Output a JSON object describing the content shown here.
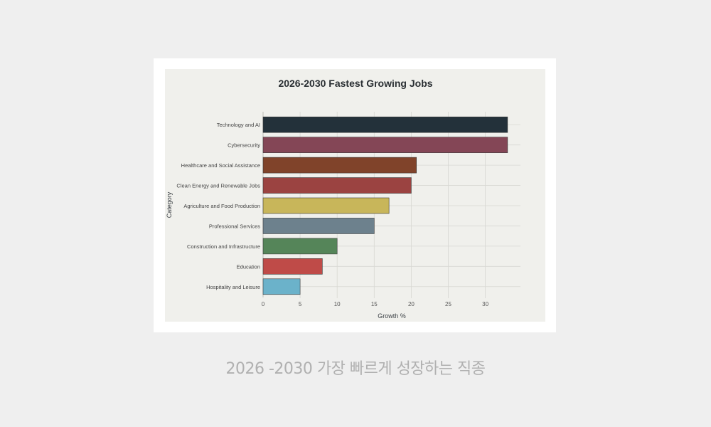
{
  "chart_data": {
    "type": "bar",
    "orientation": "horizontal",
    "title": "2026-2030 Fastest Growing Jobs",
    "xlabel": "Growth %",
    "ylabel": "Category",
    "xlim": [
      0,
      34
    ],
    "xticks": [
      0,
      5,
      10,
      15,
      20,
      25,
      30
    ],
    "grid": true,
    "categories": [
      "Technology and AI",
      "Cybersecurity",
      "Healthcare and Social Assistance",
      "Clean Energy and Renewable Jobs",
      "Agriculture and Food Production",
      "Professional Services",
      "Construction and Infrastructure",
      "Education",
      "Hospitality and Leisure"
    ],
    "values": [
      33,
      33,
      20.7,
      20,
      17,
      15,
      10,
      8,
      5
    ],
    "colors": [
      "#23313a",
      "#844656",
      "#80432a",
      "#9b4341",
      "#c8b65a",
      "#6d818d",
      "#558559",
      "#bf4b48",
      "#6bb2ca"
    ]
  },
  "caption": "2026 -2030 가장 빠르게 성장하는 직종"
}
